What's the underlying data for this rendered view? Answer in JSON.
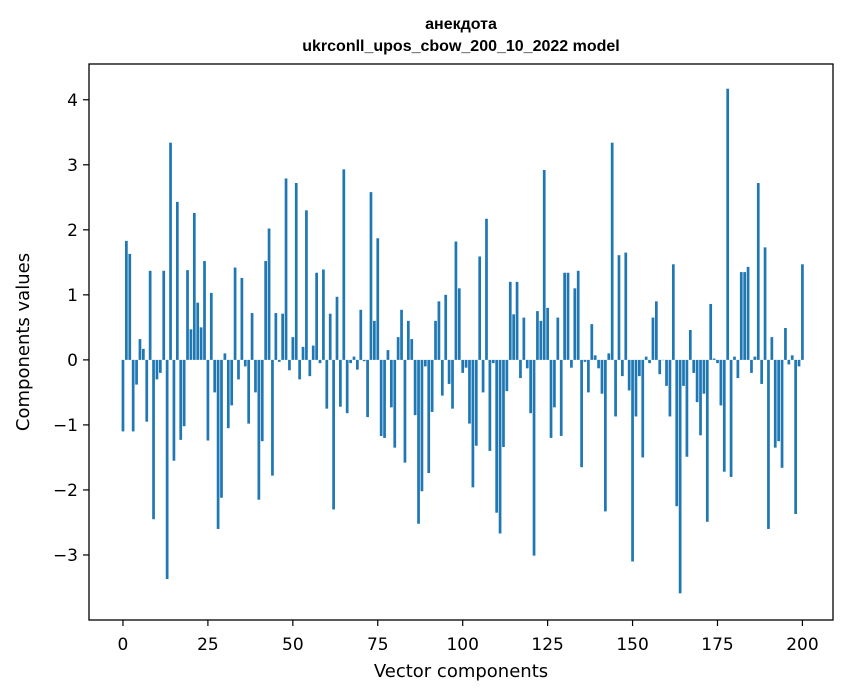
{
  "chart_data": {
    "type": "bar",
    "title": "анекдота",
    "subtitle": "ukrconll_upos_cbow_200_10_2022 model",
    "xlabel": "Vector components",
    "ylabel": "Components values",
    "xlim": [
      -10,
      209
    ],
    "ylim": [
      -4.0,
      4.55
    ],
    "x_ticks": [
      0,
      25,
      50,
      75,
      100,
      125,
      150,
      175,
      200
    ],
    "y_ticks": [
      -3,
      -2,
      -1,
      0,
      1,
      2,
      3,
      4
    ],
    "y_tick_labels": [
      "−3",
      "−2",
      "−1",
      "0",
      "1",
      "2",
      "3",
      "4"
    ],
    "grid": false,
    "bar_color": "#1f77b4",
    "values": [
      -1.1,
      1.83,
      1.63,
      -1.1,
      -0.38,
      0.32,
      0.17,
      -0.95,
      1.37,
      -2.45,
      -0.3,
      -0.2,
      1.37,
      -3.37,
      3.34,
      -1.55,
      2.43,
      -1.23,
      -1.02,
      1.38,
      0.47,
      2.26,
      0.88,
      0.5,
      1.52,
      -1.24,
      1.03,
      -0.5,
      -2.6,
      -2.12,
      0.1,
      -1.05,
      -0.7,
      1.42,
      -0.3,
      1.26,
      -0.1,
      -0.98,
      0.72,
      -0.5,
      -2.15,
      -1.25,
      1.52,
      2.02,
      -1.78,
      0.72,
      -0.03,
      0.71,
      2.79,
      -0.16,
      0.35,
      2.72,
      -0.3,
      0.2,
      2.3,
      -0.25,
      0.22,
      1.34,
      -0.05,
      1.39,
      -0.75,
      0.71,
      -2.3,
      0.97,
      -0.72,
      2.93,
      -0.82,
      -0.05,
      0.05,
      -0.15,
      0.77,
      -0.02,
      -0.88,
      2.58,
      0.6,
      1.87,
      -1.17,
      -1.2,
      0.15,
      -0.73,
      -1.35,
      0.35,
      0.77,
      -1.58,
      0.6,
      0.32,
      -0.85,
      -2.52,
      -2.02,
      -0.1,
      -1.74,
      -0.8,
      0.6,
      0.9,
      -0.55,
      1.0,
      -0.37,
      -0.75,
      1.82,
      1.1,
      -0.2,
      -0.12,
      -0.98,
      -1.96,
      -1.32,
      1.59,
      -0.5,
      2.17,
      -1.4,
      -0.05,
      -2.35,
      -2.67,
      -1.34,
      -0.48,
      1.2,
      0.7,
      1.2,
      -0.28,
      0.65,
      -0.13,
      -0.82,
      -3.01,
      0.75,
      0.6,
      2.92,
      0.8,
      -1.2,
      -0.73,
      0.65,
      -1.17,
      1.34,
      1.34,
      -0.12,
      1.1,
      1.37,
      -1.65,
      -0.03,
      -0.5,
      0.55,
      0.07,
      -0.13,
      -0.52,
      -2.33,
      0.1,
      3.34,
      -0.87,
      1.61,
      -0.25,
      1.65,
      -0.47,
      -3.1,
      -0.87,
      -0.25,
      -1.5,
      0.05,
      -0.05,
      0.65,
      0.9,
      -0.22,
      0.0,
      -0.4,
      -0.87,
      1.47,
      -2.25,
      -3.59,
      -0.4,
      -1.49,
      0.46,
      -0.2,
      -0.65,
      -1.16,
      -0.52,
      -2.49,
      0.86,
      0.02,
      -0.05,
      -0.7,
      -1.72,
      4.17,
      -1.8,
      0.05,
      -0.28,
      1.35,
      1.35,
      1.43,
      -0.2,
      0.05,
      2.72,
      -0.37,
      1.73,
      -2.6,
      0.35,
      -1.35,
      -1.25,
      -1.66,
      0.49,
      -0.07,
      0.07,
      -2.37,
      -0.1,
      1.47
    ]
  }
}
